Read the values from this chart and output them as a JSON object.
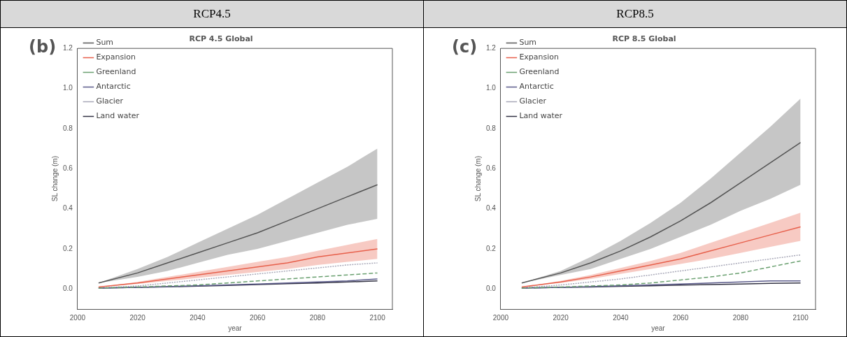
{
  "chart_data": [
    {
      "type": "line",
      "title": "RCP 4.5 Global",
      "xlabel": "year",
      "ylabel": "SL change (m)",
      "annotations": [
        "RCP4.5",
        "(b)"
      ],
      "x": [
        2007,
        2020,
        2030,
        2040,
        2050,
        2060,
        2070,
        2080,
        2090,
        2100
      ],
      "xlim": [
        2000,
        2105
      ],
      "xticks": [
        2000,
        2020,
        2040,
        2060,
        2080,
        2100
      ],
      "ylim": [
        -0.1,
        1.2
      ],
      "yticks": [
        {
          "value": 0,
          "label": "0.0"
        },
        {
          "value": 0.2,
          "label": "0.2"
        },
        {
          "value": 0.4,
          "label": "0.4"
        },
        {
          "value": 0.6,
          "label": "0.6"
        },
        {
          "value": 0.8,
          "label": "0.8"
        },
        {
          "value": 1.0,
          "label": "1.0"
        },
        {
          "value": 1.2,
          "label": "1.2"
        }
      ],
      "grid": false,
      "legend": "top left",
      "marker": "none",
      "series": [
        {
          "name": "Sum",
          "color": "#555555",
          "line_style": "solid",
          "values": [
            0.03,
            0.08,
            0.13,
            0.18,
            0.23,
            0.28,
            0.34,
            0.4,
            0.46,
            0.52
          ],
          "lower": [
            0.03,
            0.06,
            0.09,
            0.13,
            0.17,
            0.2,
            0.24,
            0.28,
            0.32,
            0.35
          ],
          "upper": [
            0.03,
            0.1,
            0.16,
            0.23,
            0.3,
            0.37,
            0.45,
            0.53,
            0.61,
            0.7
          ]
        },
        {
          "name": "Expansion",
          "color": "#e8604c",
          "line_style": "solid",
          "values": [
            0.01,
            0.03,
            0.05,
            0.07,
            0.09,
            0.11,
            0.13,
            0.16,
            0.18,
            0.2
          ],
          "lower": [
            0.01,
            0.025,
            0.04,
            0.055,
            0.07,
            0.085,
            0.1,
            0.12,
            0.135,
            0.15
          ],
          "upper": [
            0.01,
            0.035,
            0.06,
            0.085,
            0.11,
            0.135,
            0.16,
            0.19,
            0.22,
            0.25
          ]
        },
        {
          "name": "Greenland",
          "color": "#6aa070",
          "line_style": "dashed",
          "values": [
            0.005,
            0.01,
            0.015,
            0.02,
            0.03,
            0.04,
            0.05,
            0.06,
            0.07,
            0.08
          ]
        },
        {
          "name": "Antarctic",
          "color": "#5a5a8a",
          "line_style": "solid",
          "values": [
            0.005,
            0.008,
            0.012,
            0.016,
            0.02,
            0.025,
            0.03,
            0.035,
            0.04,
            0.05
          ]
        },
        {
          "name": "Glacier",
          "color": "#a8a8b8",
          "line_style": "dotted",
          "values": [
            0.005,
            0.015,
            0.03,
            0.045,
            0.06,
            0.075,
            0.09,
            0.105,
            0.12,
            0.13
          ]
        },
        {
          "name": "Land water",
          "color": "#333344",
          "line_style": "solid",
          "values": [
            0.005,
            0.008,
            0.011,
            0.014,
            0.018,
            0.022,
            0.026,
            0.03,
            0.035,
            0.04
          ]
        }
      ]
    },
    {
      "type": "line",
      "title": "RCP 8.5 Global",
      "xlabel": "year",
      "ylabel": "SL change (m)",
      "annotations": [
        "RCP8.5",
        "(c)"
      ],
      "x": [
        2007,
        2020,
        2030,
        2040,
        2050,
        2060,
        2070,
        2080,
        2090,
        2100
      ],
      "xlim": [
        2000,
        2105
      ],
      "xticks": [
        2000,
        2020,
        2040,
        2060,
        2080,
        2100
      ],
      "ylim": [
        -0.1,
        1.2
      ],
      "yticks": [
        {
          "value": 0,
          "label": "0.0"
        },
        {
          "value": 0.2,
          "label": "0.2"
        },
        {
          "value": 0.4,
          "label": "0.4"
        },
        {
          "value": 0.6,
          "label": "0.6"
        },
        {
          "value": 0.8,
          "label": "0.8"
        },
        {
          "value": 1.0,
          "label": "1.0"
        },
        {
          "value": 1.2,
          "label": "1.2"
        }
      ],
      "grid": false,
      "legend": "top left",
      "marker": "none",
      "series": [
        {
          "name": "Sum",
          "color": "#555555",
          "line_style": "solid",
          "values": [
            0.03,
            0.08,
            0.13,
            0.19,
            0.26,
            0.34,
            0.43,
            0.53,
            0.63,
            0.73
          ],
          "lower": [
            0.03,
            0.07,
            0.1,
            0.15,
            0.2,
            0.26,
            0.32,
            0.39,
            0.45,
            0.52
          ],
          "upper": [
            0.03,
            0.09,
            0.16,
            0.24,
            0.33,
            0.43,
            0.55,
            0.68,
            0.81,
            0.95
          ]
        },
        {
          "name": "Expansion",
          "color": "#e8604c",
          "line_style": "solid",
          "values": [
            0.01,
            0.035,
            0.06,
            0.09,
            0.12,
            0.15,
            0.19,
            0.23,
            0.27,
            0.31
          ],
          "lower": [
            0.01,
            0.03,
            0.05,
            0.075,
            0.1,
            0.125,
            0.15,
            0.18,
            0.21,
            0.24
          ],
          "upper": [
            0.01,
            0.04,
            0.07,
            0.105,
            0.14,
            0.18,
            0.23,
            0.28,
            0.33,
            0.38
          ]
        },
        {
          "name": "Greenland",
          "color": "#6aa070",
          "line_style": "dashed",
          "values": [
            0.005,
            0.01,
            0.015,
            0.02,
            0.03,
            0.045,
            0.06,
            0.08,
            0.11,
            0.14
          ]
        },
        {
          "name": "Antarctic",
          "color": "#5a5a8a",
          "line_style": "solid",
          "values": [
            0.005,
            0.008,
            0.012,
            0.016,
            0.02,
            0.025,
            0.03,
            0.035,
            0.04,
            0.04
          ]
        },
        {
          "name": "Glacier",
          "color": "#a8a8b8",
          "line_style": "dotted",
          "values": [
            0.005,
            0.02,
            0.035,
            0.05,
            0.07,
            0.09,
            0.11,
            0.13,
            0.15,
            0.17
          ]
        },
        {
          "name": "Land water",
          "color": "#333344",
          "line_style": "solid",
          "values": [
            0.005,
            0.008,
            0.01,
            0.013,
            0.016,
            0.019,
            0.022,
            0.025,
            0.028,
            0.03
          ]
        }
      ]
    }
  ]
}
